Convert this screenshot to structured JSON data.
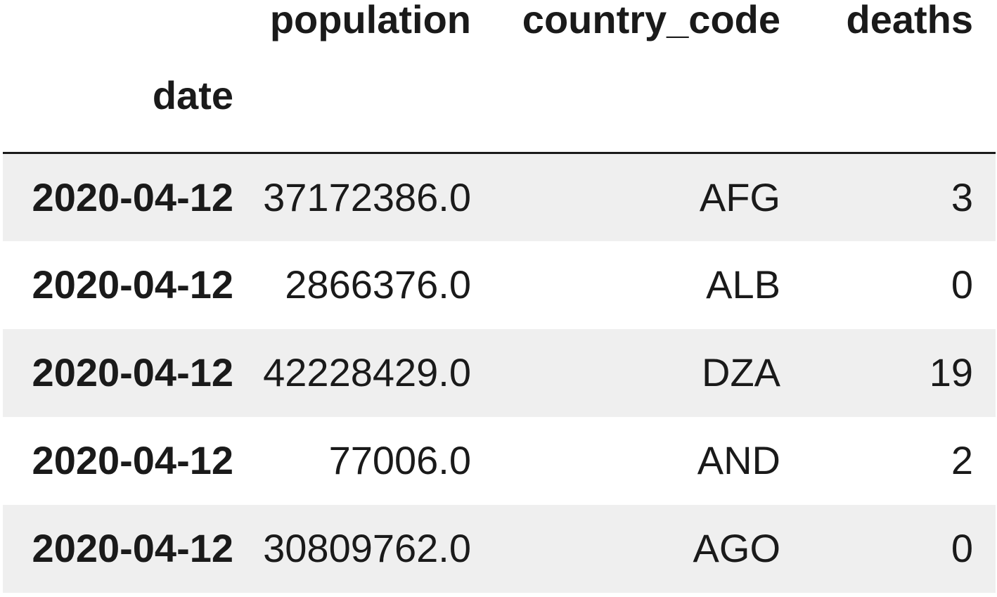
{
  "dataframe": {
    "index_name": "date",
    "columns": [
      "population",
      "country_code",
      "deaths"
    ],
    "rows": [
      {
        "date": "2020-04-12",
        "population": "37172386.0",
        "country_code": "AFG",
        "deaths": "3"
      },
      {
        "date": "2020-04-12",
        "population": "2866376.0",
        "country_code": "ALB",
        "deaths": "0"
      },
      {
        "date": "2020-04-12",
        "population": "42228429.0",
        "country_code": "DZA",
        "deaths": "19"
      },
      {
        "date": "2020-04-12",
        "population": "77006.0",
        "country_code": "AND",
        "deaths": "2"
      },
      {
        "date": "2020-04-12",
        "population": "30809762.0",
        "country_code": "AGO",
        "deaths": "0"
      }
    ]
  },
  "colors": {
    "row_stripe": "#efefef",
    "background": "#ffffff",
    "text": "#1a1a1a",
    "header_rule": "#1a1a1a"
  }
}
